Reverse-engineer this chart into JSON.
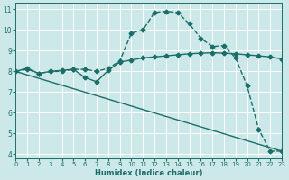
{
  "xlabel": "Humidex (Indice chaleur)",
  "background_color": "#cce8e8",
  "grid_color": "#ffffff",
  "line_color": "#1a6e6a",
  "xlim": [
    0,
    23
  ],
  "ylim": [
    3.8,
    11.3
  ],
  "xticks": [
    0,
    1,
    2,
    3,
    4,
    5,
    6,
    7,
    8,
    9,
    10,
    11,
    12,
    13,
    14,
    15,
    16,
    17,
    18,
    19,
    20,
    21,
    22,
    23
  ],
  "yticks": [
    4,
    5,
    6,
    7,
    8,
    9,
    10,
    11
  ],
  "line1_x": [
    0,
    1,
    2,
    3,
    4,
    5,
    6,
    7,
    8,
    9,
    10,
    11,
    12,
    13,
    14,
    15,
    16,
    17,
    18,
    19,
    20,
    21,
    22,
    23
  ],
  "line1_y": [
    8.0,
    8.1,
    7.9,
    8.0,
    8.0,
    8.1,
    8.1,
    8.0,
    8.15,
    8.5,
    9.85,
    10.0,
    10.85,
    10.9,
    10.85,
    10.3,
    9.6,
    9.2,
    9.25,
    8.65,
    7.3,
    5.2,
    4.15,
    4.15
  ],
  "line2_x": [
    0,
    1,
    2,
    3,
    4,
    5,
    6,
    7,
    8,
    9,
    10,
    11,
    12,
    13,
    14,
    15,
    16,
    17,
    18,
    19,
    20,
    21,
    22,
    23
  ],
  "line2_y": [
    8.0,
    8.15,
    7.9,
    8.0,
    8.05,
    8.1,
    7.7,
    7.5,
    8.05,
    8.45,
    8.55,
    8.65,
    8.7,
    8.75,
    8.8,
    8.85,
    8.88,
    8.9,
    8.88,
    8.85,
    8.8,
    8.75,
    8.7,
    8.6
  ],
  "line3_x": [
    0,
    23
  ],
  "line3_y": [
    8.0,
    4.15
  ],
  "font_color": "#1a6e6a",
  "marker": "D",
  "marker_size": 2.5,
  "linewidth": 1.0
}
